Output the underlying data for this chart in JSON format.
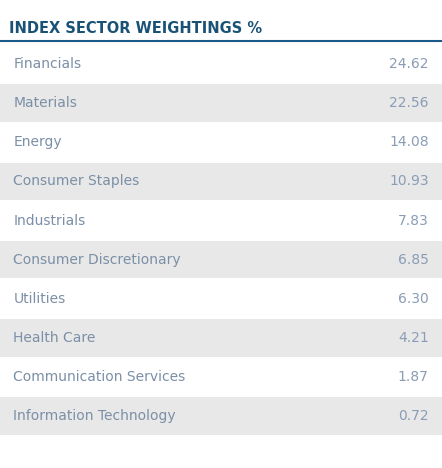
{
  "title": "INDEX SECTOR WEIGHTINGS %",
  "title_color": "#1a5276",
  "title_fontsize": 10.5,
  "header_line_color": "#1a5a8a",
  "rows": [
    {
      "label": "Financials",
      "value": "24.62",
      "shaded": false
    },
    {
      "label": "Materials",
      "value": "22.56",
      "shaded": true
    },
    {
      "label": "Energy",
      "value": "14.08",
      "shaded": false
    },
    {
      "label": "Consumer Staples",
      "value": "10.93",
      "shaded": true
    },
    {
      "label": "Industrials",
      "value": "7.83",
      "shaded": false
    },
    {
      "label": "Consumer Discretionary",
      "value": "6.85",
      "shaded": true
    },
    {
      "label": "Utilities",
      "value": "6.30",
      "shaded": false
    },
    {
      "label": "Health Care",
      "value": "4.21",
      "shaded": true
    },
    {
      "label": "Communication Services",
      "value": "1.87",
      "shaded": false
    },
    {
      "label": "Information Technology",
      "value": "0.72",
      "shaded": true
    }
  ],
  "shaded_color": "#e8e8e8",
  "white_color": "#ffffff",
  "text_color": "#7b8fa6",
  "value_color": "#8a9db5",
  "bg_color": "#ffffff",
  "font_size": 10.0
}
